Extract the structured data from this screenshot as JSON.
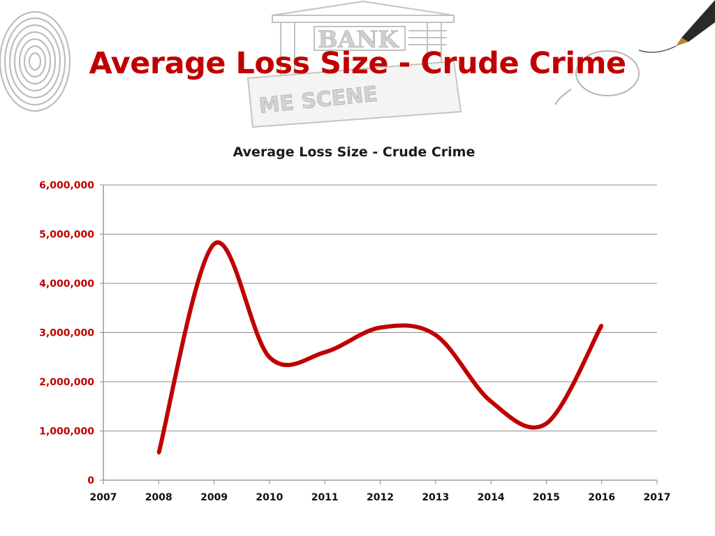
{
  "slide": {
    "title": "Average Loss Size - Crude Crime"
  },
  "colors": {
    "accent": "#c00000",
    "gridline": "#8c8c8c",
    "axis": "#8c8c8c",
    "decoration": "#bdbdbd"
  },
  "decoration": {
    "icons": [
      "fingerprint-icon",
      "bank-building-icon",
      "crime-scene-tape-icon",
      "magnifying-glass-icon",
      "fountain-pen-icon"
    ],
    "bank_sign": "BANK",
    "tape_text": "ME SCENE"
  },
  "chart_data": {
    "type": "line",
    "title": "Average Loss Size - Crude Crime",
    "xlabel": "",
    "ylabel": "",
    "xlim": [
      2007,
      2017
    ],
    "ylim": [
      0,
      6000000
    ],
    "x_ticks": [
      "2007",
      "2008",
      "2009",
      "2010",
      "2011",
      "2012",
      "2013",
      "2014",
      "2015",
      "2016",
      "2017"
    ],
    "y_ticks": [
      "0",
      "1,000,000",
      "2,000,000",
      "3,000,000",
      "4,000,000",
      "5,000,000",
      "6,000,000"
    ],
    "grid": true,
    "smooth": true,
    "legend": "none",
    "series": [
      {
        "color": "#c00000",
        "x": [
          2008,
          2009,
          2010,
          2011,
          2012,
          2013,
          2014,
          2015,
          2016
        ],
        "values": [
          550000,
          4800000,
          2500000,
          2600000,
          3100000,
          2950000,
          1600000,
          1150000,
          3150000
        ]
      }
    ]
  }
}
